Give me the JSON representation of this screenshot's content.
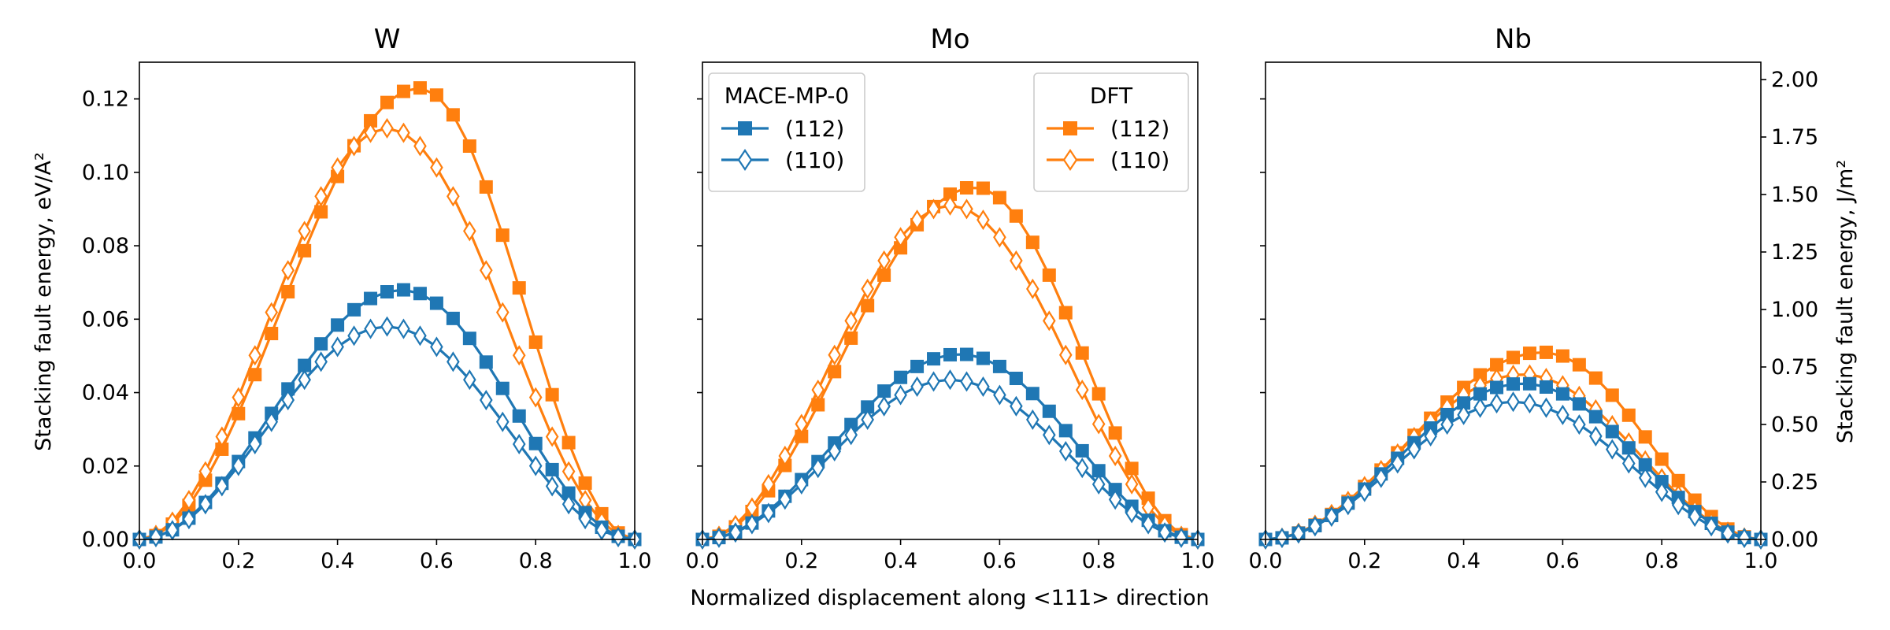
{
  "figure": {
    "xlabel": "Normalized displacement along <111> direction",
    "ylabel_left": "Stacking fault energy, eV/A²",
    "ylabel_right": "Stacking fault energy, J/m²"
  },
  "legend": {
    "mace": {
      "title": "MACE-MP-0",
      "entries": [
        "(112)",
        "(110)"
      ]
    },
    "dft": {
      "title": "DFT",
      "entries": [
        "(112)",
        "(110)"
      ]
    }
  },
  "colors": {
    "mace": "#1f77b4",
    "dft": "#ff7f0e"
  },
  "chart_data": [
    {
      "type": "line",
      "title": "W",
      "xlim": [
        0,
        1
      ],
      "ylim": [
        0,
        0.13
      ],
      "xticks": [
        "0.0",
        "0.2",
        "0.4",
        "0.6",
        "0.8",
        "1.0"
      ],
      "yticks": [
        "0.00",
        "0.02",
        "0.04",
        "0.06",
        "0.08",
        "0.10",
        "0.12"
      ],
      "series": [
        {
          "name": "DFT (112)",
          "color": "#ff7f0e",
          "marker": "square",
          "peak": 0.123,
          "peak_x": 0.565
        },
        {
          "name": "DFT (110)",
          "color": "#ff7f0e",
          "marker": "diamond-open",
          "peak": 0.112,
          "peak_x": 0.5
        },
        {
          "name": "MACE-MP-0 (112)",
          "color": "#1f77b4",
          "marker": "square",
          "peak": 0.068,
          "peak_x": 0.53
        },
        {
          "name": "MACE-MP-0 (110)",
          "color": "#1f77b4",
          "marker": "diamond-open",
          "peak": 0.058,
          "peak_x": 0.5
        }
      ]
    },
    {
      "type": "line",
      "title": "Mo",
      "xlim": [
        0,
        1
      ],
      "ylim": [
        0,
        0.13
      ],
      "xticks": [
        "0.0",
        "0.2",
        "0.4",
        "0.6",
        "0.8",
        "1.0"
      ],
      "series": [
        {
          "name": "DFT (112)",
          "color": "#ff7f0e",
          "marker": "square",
          "peak": 0.096,
          "peak_x": 0.55
        },
        {
          "name": "DFT (110)",
          "color": "#ff7f0e",
          "marker": "diamond-open",
          "peak": 0.091,
          "peak_x": 0.5
        },
        {
          "name": "MACE-MP-0 (112)",
          "color": "#1f77b4",
          "marker": "square",
          "peak": 0.0505,
          "peak_x": 0.52
        },
        {
          "name": "MACE-MP-0 (110)",
          "color": "#1f77b4",
          "marker": "diamond-open",
          "peak": 0.0435,
          "peak_x": 0.5
        }
      ]
    },
    {
      "type": "line",
      "title": "Nb",
      "xlim": [
        0,
        1
      ],
      "ylim": [
        0,
        0.13
      ],
      "xticks": [
        "0.0",
        "0.2",
        "0.4",
        "0.6",
        "0.8",
        "1.0"
      ],
      "yticks_right": [
        "0.00",
        "0.25",
        "0.50",
        "0.75",
        "1.00",
        "1.25",
        "1.50",
        "1.75",
        "2.00"
      ],
      "ylim_right": [
        0,
        2.0753
      ],
      "series": [
        {
          "name": "DFT (112)",
          "color": "#ff7f0e",
          "marker": "square",
          "peak": 0.051,
          "peak_x": 0.56
        },
        {
          "name": "DFT (110)",
          "color": "#ff7f0e",
          "marker": "diamond-open",
          "peak": 0.045,
          "peak_x": 0.52
        },
        {
          "name": "MACE-MP-0 (112)",
          "color": "#1f77b4",
          "marker": "square",
          "peak": 0.0425,
          "peak_x": 0.52
        },
        {
          "name": "MACE-MP-0 (110)",
          "color": "#1f77b4",
          "marker": "diamond-open",
          "peak": 0.0375,
          "peak_x": 0.5
        }
      ]
    }
  ]
}
